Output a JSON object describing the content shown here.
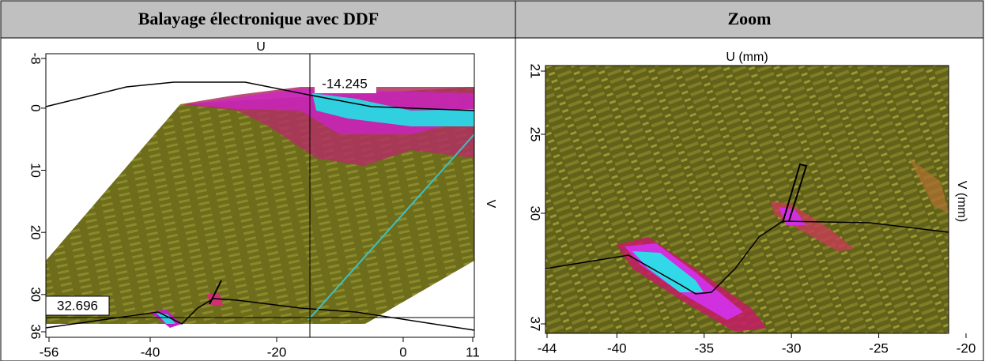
{
  "header": {
    "left": "Balayage électronique avec DDF",
    "right": "Zoom"
  },
  "left_panel": {
    "x_axis_label": "U",
    "y_axis_label": "V",
    "xticks": [
      -56,
      -40,
      -20,
      0,
      11
    ],
    "yticks": [
      -8,
      0,
      10,
      20,
      30,
      36
    ],
    "cursor_u": -14.245,
    "cursor_v": 32.696
  },
  "right_panel": {
    "x_axis_label": "U (mm)",
    "y_axis_label": "V (mm)",
    "xticks": [
      -44,
      -40,
      -35,
      -30,
      -25,
      -20
    ],
    "yticks": [
      21,
      25,
      30,
      37
    ]
  }
}
